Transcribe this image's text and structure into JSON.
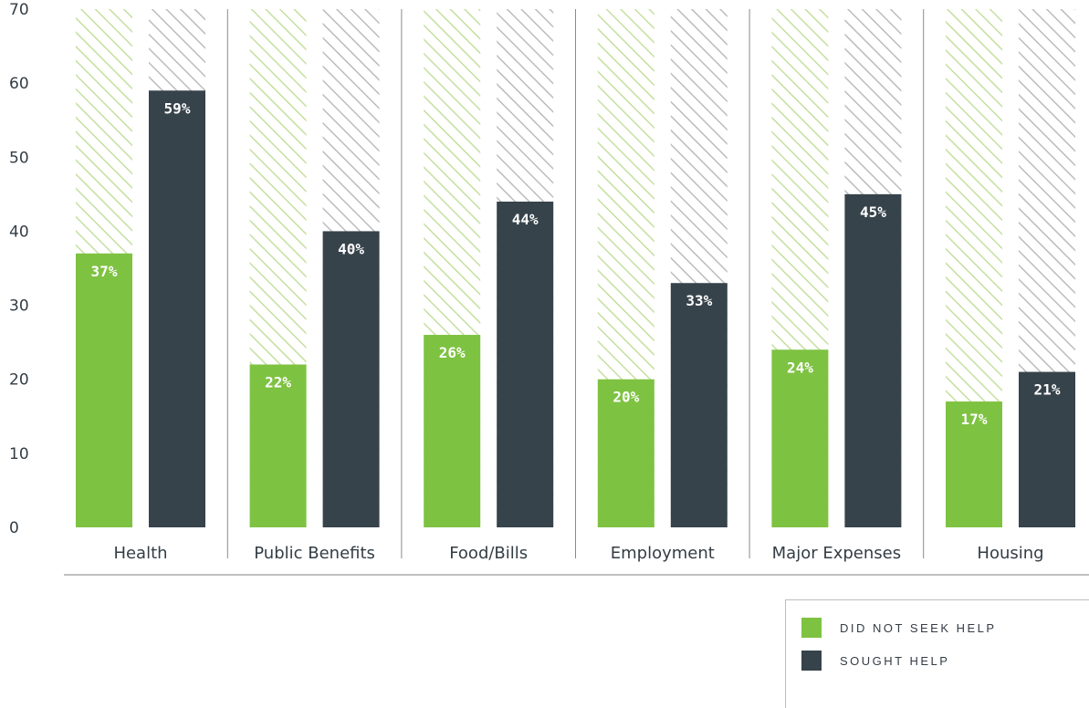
{
  "chart_data": {
    "type": "bar",
    "categories": [
      "Health",
      "Public Benefits",
      "Food/Bills",
      "Employment",
      "Major Expenses",
      "Housing"
    ],
    "series": [
      {
        "name": "DID NOT SEEK HELP",
        "values": [
          37,
          22,
          26,
          20,
          24,
          17
        ],
        "labels": [
          "37%",
          "22%",
          "26%",
          "20%",
          "24%",
          "17%"
        ],
        "color": "#7ec242"
      },
      {
        "name": "SOUGHT HELP",
        "values": [
          59,
          40,
          44,
          33,
          45,
          21
        ],
        "labels": [
          "59%",
          "40%",
          "44%",
          "33%",
          "45%",
          "21%"
        ],
        "color": "#37434b"
      }
    ],
    "yticks": [
      "0",
      "10",
      "20",
      "30",
      "40",
      "50",
      "60",
      "70"
    ],
    "ylim": [
      0,
      70
    ],
    "background_pattern": "diagonal hatch",
    "hatch_colors": [
      "#c5dfa0",
      "#bcbcbc"
    ],
    "legend_position": "bottom-right",
    "grid": false
  },
  "legend": {
    "items": [
      {
        "label": "DID NOT SEEK HELP",
        "color": "#7ec242"
      },
      {
        "label": "SOUGHT HELP",
        "color": "#37434b"
      }
    ]
  }
}
